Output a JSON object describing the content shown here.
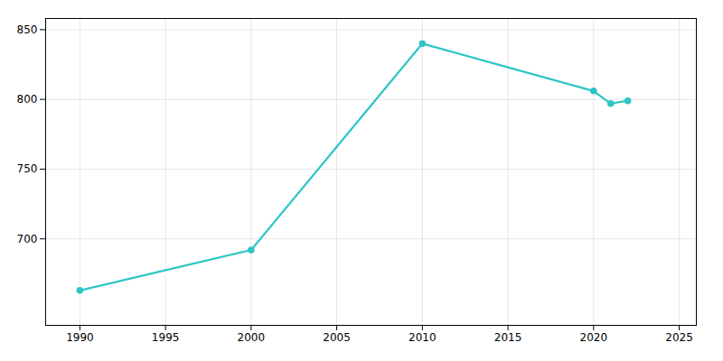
{
  "chart_data": {
    "type": "line",
    "x": [
      1990,
      2000,
      2010,
      2020,
      2021,
      2022
    ],
    "values": [
      663,
      692,
      840,
      806,
      797,
      799
    ],
    "color": "#2DC5C5",
    "marker": "circle",
    "xlim": [
      1988,
      2026
    ],
    "ylim": [
      638,
      858
    ],
    "xticks": [
      1990,
      1995,
      2000,
      2005,
      2010,
      2015,
      2020,
      2025
    ],
    "yticks": [
      700,
      750,
      800,
      850
    ],
    "grid": true
  }
}
